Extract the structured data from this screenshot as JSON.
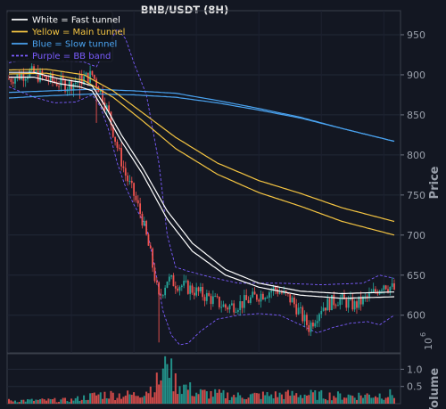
{
  "chart_data": {
    "type": "candlestick",
    "title": "BNB/USDT (8H)",
    "ylabel": "Price",
    "volume_ylabel": "Volume",
    "volume_exponent": "6",
    "ylim": [
      553,
      980
    ],
    "yticks": [
      600,
      650,
      700,
      750,
      800,
      850,
      900,
      950
    ],
    "volume_ylim": [
      0,
      1.45
    ],
    "volume_yticks": [
      0.5,
      1.0
    ],
    "colors": {
      "background": "#131722",
      "up": "#26a69a",
      "down": "#ef5350",
      "fast": "#ffffff",
      "main": "#f5c542",
      "slow": "#4aa3f0",
      "bb": "#7b5cff"
    },
    "legend": {
      "placement": "top-left",
      "entries": [
        {
          "label": "White = Fast tunnel",
          "color": "#ffffff",
          "dashed": false
        },
        {
          "label": "Yellow = Main tunnel",
          "color": "#f5c542",
          "dashed": false
        },
        {
          "label": "Blue = Slow tunnel",
          "color": "#4aa3f0",
          "dashed": false
        },
        {
          "label": "Purple = BB band",
          "color": "#7b5cff",
          "dashed": true
        }
      ]
    },
    "price_waypoints": [
      [
        0,
        895
      ],
      [
        10,
        903
      ],
      [
        20,
        893
      ],
      [
        28,
        887
      ],
      [
        33,
        892
      ],
      [
        40,
        900
      ],
      [
        44,
        880
      ],
      [
        48,
        850
      ],
      [
        52,
        810
      ],
      [
        56,
        775
      ],
      [
        60,
        750
      ],
      [
        64,
        720
      ],
      [
        68,
        675
      ],
      [
        72,
        620
      ],
      [
        76,
        645
      ],
      [
        80,
        640
      ],
      [
        88,
        632
      ],
      [
        96,
        622
      ],
      [
        104,
        610
      ],
      [
        112,
        615
      ],
      [
        120,
        625
      ],
      [
        128,
        633
      ],
      [
        136,
        618
      ],
      [
        144,
        585
      ],
      [
        150,
        610
      ],
      [
        158,
        620
      ],
      [
        166,
        612
      ],
      [
        174,
        625
      ],
      [
        180,
        640
      ],
      [
        185,
        632
      ]
    ],
    "volume_waypoints": [
      [
        0,
        0.1
      ],
      [
        30,
        0.12
      ],
      [
        44,
        0.3
      ],
      [
        60,
        0.28
      ],
      [
        70,
        0.55
      ],
      [
        76,
        1.15
      ],
      [
        80,
        0.7
      ],
      [
        90,
        0.35
      ],
      [
        110,
        0.25
      ],
      [
        140,
        0.3
      ],
      [
        160,
        0.25
      ],
      [
        185,
        0.3
      ]
    ],
    "fast_tunnel": [
      [
        0,
        903,
        897
      ],
      [
        12,
        903,
        897
      ],
      [
        24,
        895,
        889
      ],
      [
        34,
        891,
        885
      ],
      [
        40,
        886,
        880
      ],
      [
        46,
        862,
        854
      ],
      [
        54,
        825,
        817
      ],
      [
        64,
        785,
        777
      ],
      [
        76,
        730,
        720
      ],
      [
        88,
        690,
        680
      ],
      [
        104,
        657,
        650
      ],
      [
        120,
        640,
        635
      ],
      [
        140,
        630,
        625
      ],
      [
        160,
        627,
        621
      ],
      [
        185,
        629,
        623
      ]
    ],
    "main_tunnel": [
      [
        0,
        906,
        901
      ],
      [
        18,
        907,
        902
      ],
      [
        36,
        900,
        893
      ],
      [
        50,
        880,
        872
      ],
      [
        64,
        853,
        843
      ],
      [
        80,
        822,
        808
      ],
      [
        100,
        790,
        776
      ],
      [
        120,
        768,
        753
      ],
      [
        140,
        752,
        736
      ],
      [
        160,
        734,
        717
      ],
      [
        185,
        717,
        700
      ]
    ],
    "slow_tunnel": [
      [
        0,
        871,
        878
      ],
      [
        20,
        874,
        880
      ],
      [
        40,
        876,
        882
      ],
      [
        60,
        875,
        880
      ],
      [
        80,
        872,
        877
      ],
      [
        100,
        865,
        868
      ],
      [
        120,
        856,
        858
      ],
      [
        140,
        846,
        847
      ],
      [
        160,
        833,
        833
      ],
      [
        185,
        817,
        817
      ]
    ],
    "bb_upper": [
      [
        0,
        915
      ],
      [
        14,
        923
      ],
      [
        26,
        918
      ],
      [
        36,
        916
      ],
      [
        42,
        910
      ],
      [
        48,
        940
      ],
      [
        52,
        957
      ],
      [
        56,
        945
      ],
      [
        60,
        915
      ],
      [
        66,
        875
      ],
      [
        72,
        790
      ],
      [
        76,
        700
      ],
      [
        80,
        660
      ],
      [
        86,
        655
      ],
      [
        96,
        648
      ],
      [
        110,
        640
      ],
      [
        130,
        640
      ],
      [
        150,
        638
      ],
      [
        170,
        640
      ],
      [
        178,
        650
      ],
      [
        185,
        646
      ]
    ],
    "bb_lower": [
      [
        0,
        885
      ],
      [
        12,
        872
      ],
      [
        22,
        865
      ],
      [
        32,
        866
      ],
      [
        40,
        875
      ],
      [
        44,
        860
      ],
      [
        48,
        830
      ],
      [
        52,
        790
      ],
      [
        56,
        760
      ],
      [
        60,
        738
      ],
      [
        66,
        710
      ],
      [
        70,
        660
      ],
      [
        74,
        605
      ],
      [
        78,
        575
      ],
      [
        82,
        563
      ],
      [
        86,
        565
      ],
      [
        92,
        580
      ],
      [
        100,
        595
      ],
      [
        110,
        600
      ],
      [
        120,
        602
      ],
      [
        130,
        600
      ],
      [
        140,
        588
      ],
      [
        148,
        578
      ],
      [
        156,
        585
      ],
      [
        164,
        590
      ],
      [
        172,
        592
      ],
      [
        178,
        588
      ],
      [
        185,
        600
      ]
    ]
  }
}
